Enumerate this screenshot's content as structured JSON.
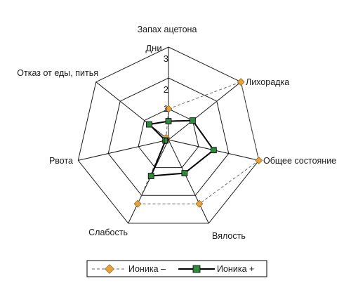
{
  "chart_data": {
    "type": "radar",
    "unit_label": "Дни",
    "axes": [
      "Запах ацетона",
      "Лихорадка",
      "Общее состояние",
      "Вялость",
      "Слабость",
      "Рвота",
      "Отказ от еды, питья"
    ],
    "ticks": [
      "0",
      "1",
      "2",
      "3"
    ],
    "rmax": 3,
    "series": [
      {
        "name": "Ионика –",
        "values": [
          1.0,
          3.0,
          3.0,
          2.3,
          2.3,
          0.1,
          0.1
        ],
        "color": "#e6a23c",
        "line_color": "#666666",
        "dashed": true
      },
      {
        "name": "Ионика +",
        "values": [
          0.6,
          1.0,
          1.5,
          1.2,
          1.3,
          0.1,
          0.8
        ],
        "color": "#2e8b3e",
        "line_color": "#000000",
        "dashed": false
      }
    ],
    "legend_position": "bottom"
  }
}
